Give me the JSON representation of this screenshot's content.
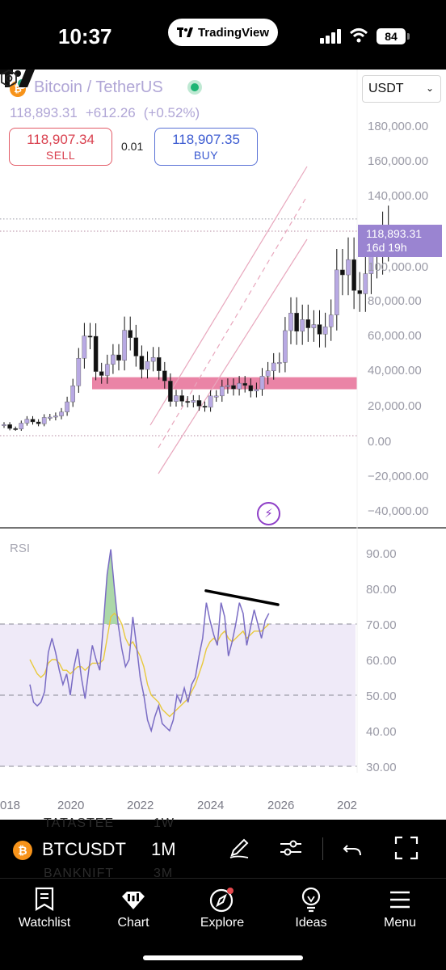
{
  "status_bar": {
    "time": "10:37",
    "app_pill": "TradingView",
    "battery": "84"
  },
  "symbol": {
    "title": "Bitcoin / TetherUS",
    "price": "118,893.31",
    "change": "+612.26",
    "change_pct": "(+0.52%)",
    "currency": "USDT"
  },
  "trade": {
    "sell_price": "118,907.34",
    "sell_label": "SELL",
    "spread": "0.01",
    "buy_price": "118,907.35",
    "buy_label": "BUY"
  },
  "price_axis": [
    "180,000.00",
    "160,000.00",
    "140,000.00",
    "100,000.00",
    "80,000.00",
    "60,000.00",
    "40,000.00",
    "20,000.00",
    "0.00",
    "−20,000.00",
    "−40,000.00"
  ],
  "last_price_tag": {
    "price": "118,893.31",
    "countdown": "16d 19h"
  },
  "rsi": {
    "label": "RSI",
    "axis": [
      "90.00",
      "80.00",
      "70.00",
      "60.00",
      "50.00",
      "40.00",
      "30.00"
    ]
  },
  "time_axis": [
    "018",
    "2020",
    "2022",
    "2024",
    "2026",
    "202"
  ],
  "toolbar": {
    "symbol": "BTCUSDT",
    "interval": "1M",
    "ghost_1": "TATASTEE",
    "ghost_1b": "1W",
    "ghost_2": "BANKNIFT",
    "ghost_2b": "3M"
  },
  "nav": [
    "Watchlist",
    "Chart",
    "Explore",
    "Ideas",
    "Menu"
  ],
  "colors": {
    "accent": "#9a84d1",
    "sell": "#d9414f",
    "buy": "#3c5bd1",
    "zone": "#e8779c",
    "rsi_line": "#7a6cc4",
    "rsi_ma": "#e8c93c"
  },
  "chart_data": [
    {
      "type": "candlestick",
      "ylim": [
        -40000,
        180000
      ],
      "x_axis_ticks": [
        "2020",
        "2022",
        "2024",
        "2026"
      ],
      "series": [
        {
          "values": [
            6500,
            4200,
            3900,
            7300,
            9600,
            8000,
            6900,
            10600,
            10800,
            11500,
            13800,
            19700,
            29000,
            45000,
            58000,
            57800,
            37300,
            35000,
            41500,
            47000,
            43800,
            61300,
            57000,
            46300,
            38500,
            43200,
            45500,
            37700,
            31800,
            19900,
            23300,
            20000,
            19400,
            20500,
            17200,
            16500,
            23100,
            23100,
            28500,
            29200,
            27200,
            30500,
            29200,
            26000,
            27000,
            34600,
            37700,
            42300,
            42600,
            61100,
            71300,
            60700,
            67500,
            62700,
            64600,
            59000,
            63300,
            70200,
            96400,
            93500,
            102400,
            84400,
            82500,
            94200,
            104600,
            107100,
            115800,
            118893
          ]
        }
      ],
      "support_zone": [
        27000,
        34000
      ],
      "dotted_levels": [
        0,
        126000,
        118893
      ]
    },
    {
      "type": "line",
      "title": "RSI",
      "ylim": [
        30,
        90
      ],
      "reference_lines": [
        70,
        50,
        30
      ],
      "series": [
        {
          "values": [
            53,
            48,
            47,
            48,
            51,
            62,
            66,
            62,
            57,
            53,
            56,
            50,
            58,
            63,
            55,
            49,
            57,
            64,
            60,
            57,
            70,
            84,
            91,
            80,
            70,
            63,
            58,
            60,
            72,
            64,
            55,
            50,
            43,
            40,
            44,
            47,
            42,
            41,
            40,
            43,
            50,
            48,
            52,
            48,
            53,
            55,
            61,
            66,
            76,
            71,
            67,
            64,
            76,
            72,
            61,
            65,
            70,
            76,
            73,
            64,
            69,
            74,
            70,
            66,
            71,
            73
          ]
        },
        {
          "values": [
            60,
            58,
            56,
            55,
            56,
            59,
            60,
            60,
            59,
            57,
            57,
            56,
            57,
            58,
            58,
            57,
            58,
            59,
            59,
            59,
            60,
            66,
            72,
            73,
            72,
            70,
            66,
            64,
            65,
            63,
            61,
            58,
            53,
            50,
            49,
            48,
            46,
            45,
            44,
            45,
            46,
            47,
            48,
            49,
            51,
            53,
            56,
            59,
            63,
            65,
            66,
            65,
            67,
            68,
            66,
            65,
            66,
            67,
            68,
            66,
            67,
            68,
            68,
            68,
            69,
            70
          ]
        }
      ],
      "divergence_line": [
        78,
        75
      ]
    }
  ]
}
